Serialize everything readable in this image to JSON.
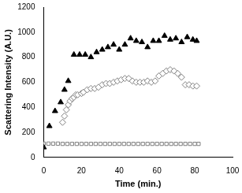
{
  "chart_data": {
    "type": "scatter",
    "x_label": "Time (min.)",
    "y_label": "Scattering Intensity (A.U.)",
    "xlim": [
      0,
      100
    ],
    "xticks": [
      0,
      20,
      40,
      60,
      80,
      100
    ],
    "ylim": [
      0,
      1200
    ],
    "yticks": [
      0,
      200,
      400,
      600,
      800,
      1000,
      1200
    ],
    "grid": false,
    "series": [
      {
        "color": "#000000",
        "marker": "triangle",
        "x": [
          0,
          3,
          6,
          9,
          11,
          13,
          16,
          19,
          22,
          25,
          28,
          31,
          34,
          37,
          40,
          43,
          46,
          49,
          52,
          55,
          58,
          61,
          64,
          67,
          70,
          73,
          76,
          79,
          81
        ],
        "values": [
          80,
          250,
          370,
          440,
          540,
          610,
          820,
          820,
          820,
          800,
          840,
          860,
          880,
          900,
          860,
          900,
          950,
          930,
          920,
          880,
          930,
          930,
          970,
          940,
          950,
          920,
          960,
          940,
          930
        ]
      },
      {
        "color": "#808080",
        "marker": "diamond-open",
        "x": [
          10,
          11,
          12,
          13,
          14,
          15,
          16,
          17,
          18,
          20,
          21,
          23,
          25,
          27,
          29,
          31,
          33,
          35,
          37,
          39,
          41,
          43,
          45,
          47,
          49,
          51,
          53,
          55,
          57,
          59,
          61,
          63,
          65,
          67,
          69,
          71,
          73,
          75,
          77,
          79,
          81
        ],
        "values": [
          280,
          330,
          380,
          420,
          450,
          470,
          480,
          500,
          500,
          510,
          520,
          540,
          550,
          550,
          560,
          580,
          590,
          590,
          600,
          610,
          620,
          630,
          630,
          610,
          600,
          600,
          600,
          610,
          600,
          610,
          650,
          670,
          690,
          700,
          690,
          670,
          640,
          580,
          580,
          570,
          570
        ]
      },
      {
        "color": "#808080",
        "marker": "square-open",
        "x": [
          0,
          2.5,
          5,
          7.5,
          10,
          12.5,
          15,
          17.5,
          20,
          22.5,
          25,
          27.5,
          30,
          32.5,
          35,
          37.5,
          40,
          42.5,
          45,
          47.5,
          50,
          52.5,
          55,
          57.5,
          60,
          62.5,
          65,
          67.5,
          70,
          72.5,
          75,
          77.5,
          80,
          82
        ],
        "values": [
          110,
          110,
          110,
          110,
          108,
          108,
          108,
          108,
          108,
          108,
          108,
          108,
          108,
          108,
          108,
          108,
          108,
          108,
          108,
          108,
          108,
          108,
          108,
          108,
          108,
          108,
          108,
          108,
          108,
          108,
          108,
          108,
          108,
          108
        ]
      }
    ]
  }
}
